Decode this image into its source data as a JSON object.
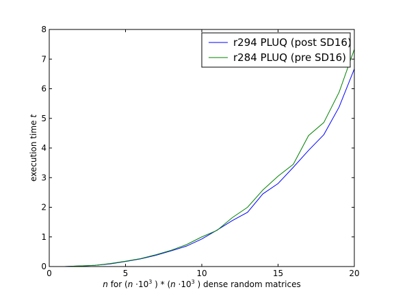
{
  "chart_data": {
    "type": "line",
    "xlabel": "n for (n ·10³) * (n ·10³) dense random matrices",
    "ylabel": "execution time t",
    "xlim": [
      0,
      20
    ],
    "ylim": [
      0,
      8
    ],
    "x_ticks": [
      "0",
      "5",
      "10",
      "15",
      "20"
    ],
    "y_ticks": [
      "0",
      "1",
      "2",
      "3",
      "4",
      "5",
      "6",
      "7",
      "8"
    ],
    "grid": false,
    "legend_position": "top-right",
    "x": [
      1,
      2,
      3,
      4,
      5,
      6,
      7,
      8,
      9,
      10,
      11,
      12,
      13,
      14,
      15,
      16,
      17,
      18,
      19,
      20
    ],
    "series": [
      {
        "name": "r294 PLUQ (post SD16)",
        "color": "#0000ff",
        "values": [
          0.0,
          0.02,
          0.04,
          0.09,
          0.17,
          0.26,
          0.38,
          0.53,
          0.69,
          0.93,
          1.23,
          1.55,
          1.83,
          2.45,
          2.8,
          3.35,
          3.92,
          4.45,
          5.38,
          6.67
        ]
      },
      {
        "name": "r284 PLUQ (pre SD16)",
        "color": "#008000",
        "values": [
          0.0,
          0.02,
          0.04,
          0.1,
          0.18,
          0.27,
          0.4,
          0.55,
          0.74,
          1.0,
          1.22,
          1.65,
          2.0,
          2.58,
          3.05,
          3.45,
          4.42,
          4.86,
          5.88,
          7.33
        ]
      }
    ]
  }
}
